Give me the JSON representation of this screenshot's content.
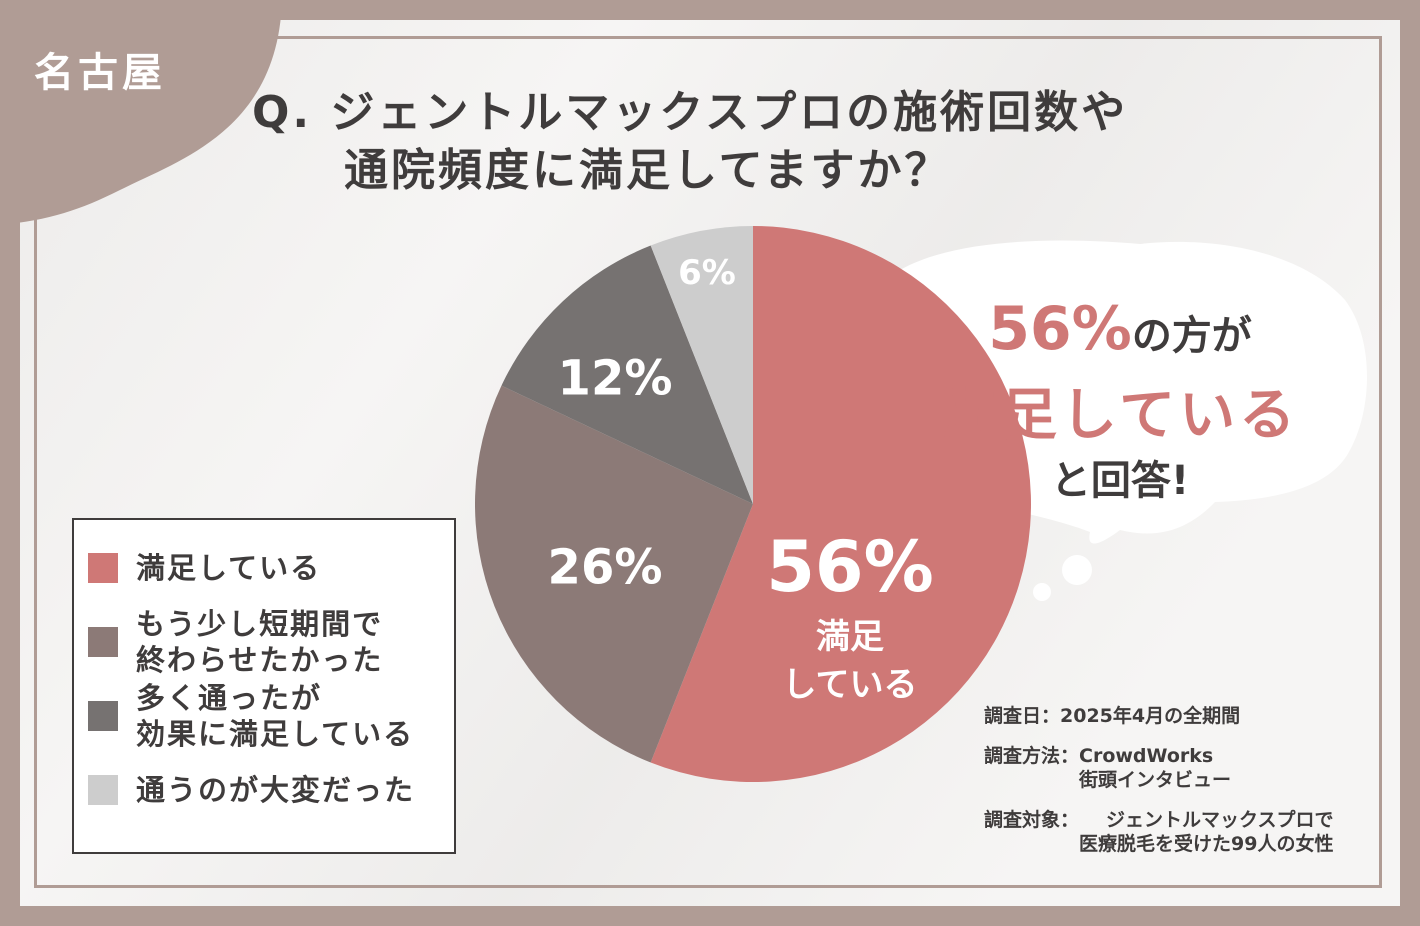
{
  "city": "名古屋",
  "title": {
    "line1": "Q. ジェントルマックスプロの施術回数や",
    "line2": "通院頻度に満足してますか？"
  },
  "colors": {
    "satisfied": "#cf7876",
    "shorter": "#8c7a77",
    "effective": "#767271",
    "hard": "#cdcdcd",
    "frame": "#b09c95",
    "text": "#3f3c3c"
  },
  "chart_data": {
    "type": "pie",
    "slices": [
      {
        "label": "満足している",
        "value": 56,
        "display": "56%",
        "sub": "満足\nしている",
        "color": "#cf7876"
      },
      {
        "label": "もう少し短期間で\n終わらせたかった",
        "value": 26,
        "display": "26%",
        "color": "#8c7a77"
      },
      {
        "label": "多く通ったが\n効果に満足している",
        "value": 12,
        "display": "12%",
        "color": "#767271"
      },
      {
        "label": "通うのが大変だった",
        "value": 6,
        "display": "6%",
        "color": "#cdcdcd"
      }
    ]
  },
  "bubble": {
    "pct": "56%",
    "suffix": "の方が",
    "line2": "満足している",
    "line3": "と回答!"
  },
  "survey": [
    {
      "key": "調査日：",
      "value": "2025年4月の全期間"
    },
    {
      "key": "調査方法：",
      "value": "CrowdWorks\n街頭インタビュー"
    },
    {
      "key": "調査対象：",
      "value": "ジェントルマックスプロで\n医療脱毛を受けた99人の女性"
    }
  ]
}
